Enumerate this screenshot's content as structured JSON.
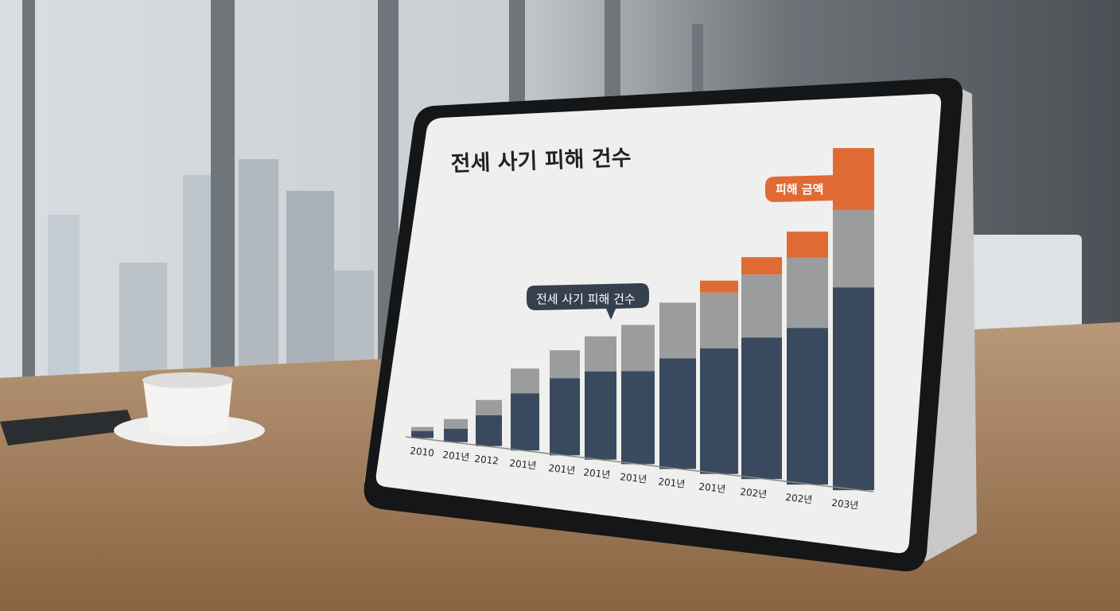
{
  "colors": {
    "navy": "#3a4a5e",
    "gray": "#9a9c9e",
    "orange": "#e06a33",
    "screen": "#efefed"
  },
  "chart_data": {
    "type": "bar",
    "stacked": true,
    "title": "전세 사기 피해 건수",
    "categories": [
      "2010",
      "201년",
      "2012",
      "201년",
      "201년",
      "201년",
      "201년",
      "201년",
      "201년",
      "202년",
      "202년",
      "203년"
    ],
    "series": [
      {
        "name": "전세 사기 피해 건수",
        "color": "#3a4a5e",
        "values": [
          9,
          17,
          39,
          72,
          97,
          111,
          117,
          139,
          158,
          178,
          197,
          255
        ]
      },
      {
        "color": "#9a9c9e",
        "values": [
          5,
          12,
          19,
          31,
          35,
          44,
          58,
          70,
          70,
          79,
          88,
          97
        ]
      },
      {
        "name": "피해 금액",
        "color": "#e06a33",
        "values": [
          0,
          0,
          0,
          0,
          0,
          0,
          0,
          0,
          15,
          22,
          33,
          78
        ]
      }
    ],
    "grid": false,
    "legend": "callout bubbles"
  }
}
